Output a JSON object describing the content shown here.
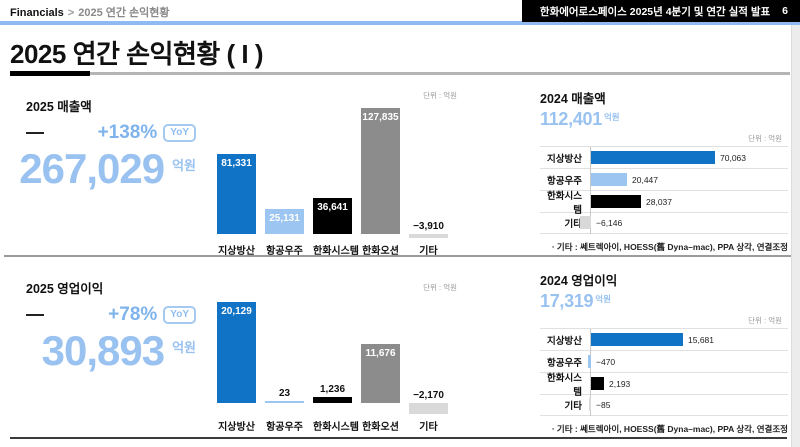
{
  "header": {
    "breadcrumb": {
      "root": "Financials",
      "separator": ">",
      "current": "2025 연간 손익현황"
    },
    "badge": "한화에어로스페이스 2025년 4분기 및 연간 실적 발표",
    "page_number": "6"
  },
  "title": "2025 연간 손익현황 ( I )",
  "unit_note": "단위 : 억원",
  "footnote": "ㆍ기타 : 쎄트렉아이, HOESS(舊 Dyna–mac), PPA 상각, 연결조정",
  "colors": {
    "accent_light_blue": "#99C2F0",
    "bar_blue": "#1173C5",
    "bar_light_blue": "#9CC5F2",
    "bar_black": "#000000",
    "bar_gray": "#8C8C8C",
    "bar_silver": "#D9D9D9",
    "header_line_blue": "#8FB9F1"
  },
  "sections": [
    {
      "metric": {
        "label": "2025 매출액",
        "growth": "+138%",
        "growth_badge": "YoY",
        "value": "267,029",
        "unit": "억원"
      },
      "comparison": {
        "label": "2024 매출액",
        "value": "112,401",
        "unit": "억원"
      }
    },
    {
      "metric": {
        "label": "2025 영업이익",
        "growth": "+78%",
        "growth_badge": "YoY",
        "value": "30,893",
        "unit": "억원"
      },
      "comparison": {
        "label": "2024 영업이익",
        "value": "17,319",
        "unit": "억원"
      }
    }
  ],
  "chart_data": [
    {
      "type": "bar",
      "orientation": "vertical",
      "title": "2025 매출액",
      "unit": "억원",
      "categories": [
        "지상방산",
        "항공우주",
        "한화시스템",
        "한화오션",
        "기타"
      ],
      "values": [
        81331,
        25131,
        36641,
        127835,
        -3910
      ],
      "value_labels": [
        "81,331",
        "25,131",
        "36,641",
        "127,835",
        "−3,910"
      ],
      "colors": [
        "#1173C5",
        "#9CC5F2",
        "#000000",
        "#8C8C8C",
        "#D9D9D9"
      ]
    },
    {
      "type": "bar",
      "orientation": "vertical",
      "title": "2025 영업이익",
      "unit": "억원",
      "categories": [
        "지상방산",
        "항공우주",
        "한화시스템",
        "한화오션",
        "기타"
      ],
      "values": [
        20129,
        23,
        1236,
        11676,
        -2170
      ],
      "value_labels": [
        "20,129",
        "23",
        "1,236",
        "11,676",
        "−2,170"
      ],
      "colors": [
        "#1173C5",
        "#9CC5F2",
        "#000000",
        "#8C8C8C",
        "#D9D9D9"
      ]
    },
    {
      "type": "bar",
      "orientation": "horizontal",
      "title": "2024 매출액",
      "unit": "억원",
      "categories": [
        "지상방산",
        "항공우주",
        "한화시스템",
        "기타"
      ],
      "values": [
        70063,
        20447,
        28037,
        -6146
      ],
      "value_labels": [
        "70,063",
        "20,447",
        "28,037",
        "−6,146"
      ],
      "colors": [
        "#1173C5",
        "#9CC5F2",
        "#000000",
        "#D9D9D9"
      ]
    },
    {
      "type": "bar",
      "orientation": "horizontal",
      "title": "2024 영업이익",
      "unit": "억원",
      "categories": [
        "지상방산",
        "항공우주",
        "한화시스템",
        "기타"
      ],
      "values": [
        15681,
        -470,
        2193,
        -85
      ],
      "value_labels": [
        "15,681",
        "−470",
        "2,193",
        "−85"
      ],
      "colors": [
        "#1173C5",
        "#9CC5F2",
        "#000000",
        "#D9D9D9"
      ]
    }
  ]
}
